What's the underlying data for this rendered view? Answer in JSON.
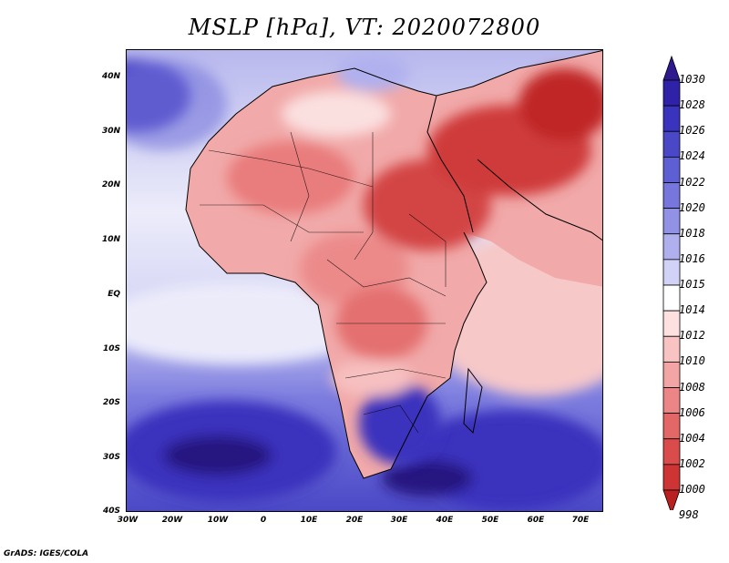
{
  "title": "MSLP [hPa], VT: 2020072800",
  "credit": "GrADS: IGES/COLA",
  "map": {
    "region": "Africa",
    "lon_range": [
      -30,
      75
    ],
    "lat_range": [
      -40,
      45
    ],
    "y_ticks": [
      "40N",
      "30N",
      "20N",
      "10N",
      "EQ",
      "10S",
      "20S",
      "30S",
      "40S"
    ],
    "x_ticks": [
      "30W",
      "20W",
      "10W",
      "0",
      "10E",
      "20E",
      "30E",
      "40E",
      "50E",
      "60E",
      "70E"
    ]
  },
  "colorbar": {
    "labels": [
      "1030",
      "1028",
      "1026",
      "1024",
      "1022",
      "1020",
      "1018",
      "1016",
      "1015",
      "1014",
      "1012",
      "1010",
      "1008",
      "1006",
      "1004",
      "1002",
      "1000",
      "998"
    ],
    "colors": [
      "#2e1a8e",
      "#3022a8",
      "#3a33bd",
      "#4b48c8",
      "#5e5fd2",
      "#7676dc",
      "#9191e6",
      "#b0b0ef",
      "#d2d2f7",
      "#ffffff",
      "#fde0e0",
      "#f9c3c3",
      "#f3a4a4",
      "#ec8585",
      "#e46767",
      "#da4b4b",
      "#ce3434",
      "#bb2020"
    ]
  }
}
